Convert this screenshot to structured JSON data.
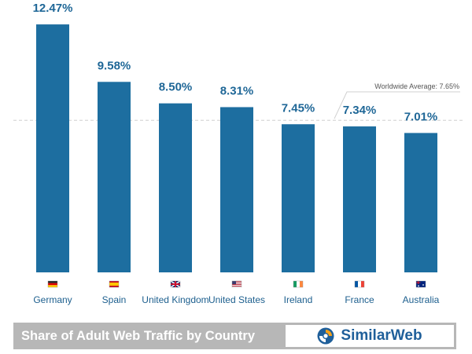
{
  "chart_data": {
    "type": "bar",
    "categories": [
      "Germany",
      "Spain",
      "United Kingdom",
      "United States",
      "Ireland",
      "France",
      "Australia"
    ],
    "values": [
      12.47,
      9.58,
      8.5,
      8.31,
      7.45,
      7.34,
      7.01
    ],
    "value_labels": [
      "12.47%",
      "9.58%",
      "8.50%",
      "8.31%",
      "7.45%",
      "7.34%",
      "7.01%"
    ],
    "flags": [
      "germany-flag",
      "spain-flag",
      "united-kingdom-flag",
      "united-states-flag",
      "ireland-flag",
      "france-flag",
      "australia-flag"
    ],
    "reference_line": {
      "value": 7.65,
      "label": "Worldwide Average: 7.65%"
    },
    "ylim": [
      0,
      13.5
    ],
    "grid": false,
    "bar_color": "#1d6ea0"
  },
  "footer": {
    "title": "Share of Adult Web Traffic by Country",
    "brand": "SimilarWeb"
  },
  "colors": {
    "bar": "#1d6ea0",
    "value_label": "#1f6797",
    "footer_bg": "#b7b7b7",
    "brand_blue": "#1f5f9a",
    "brand_orange": "#f5a11a"
  }
}
